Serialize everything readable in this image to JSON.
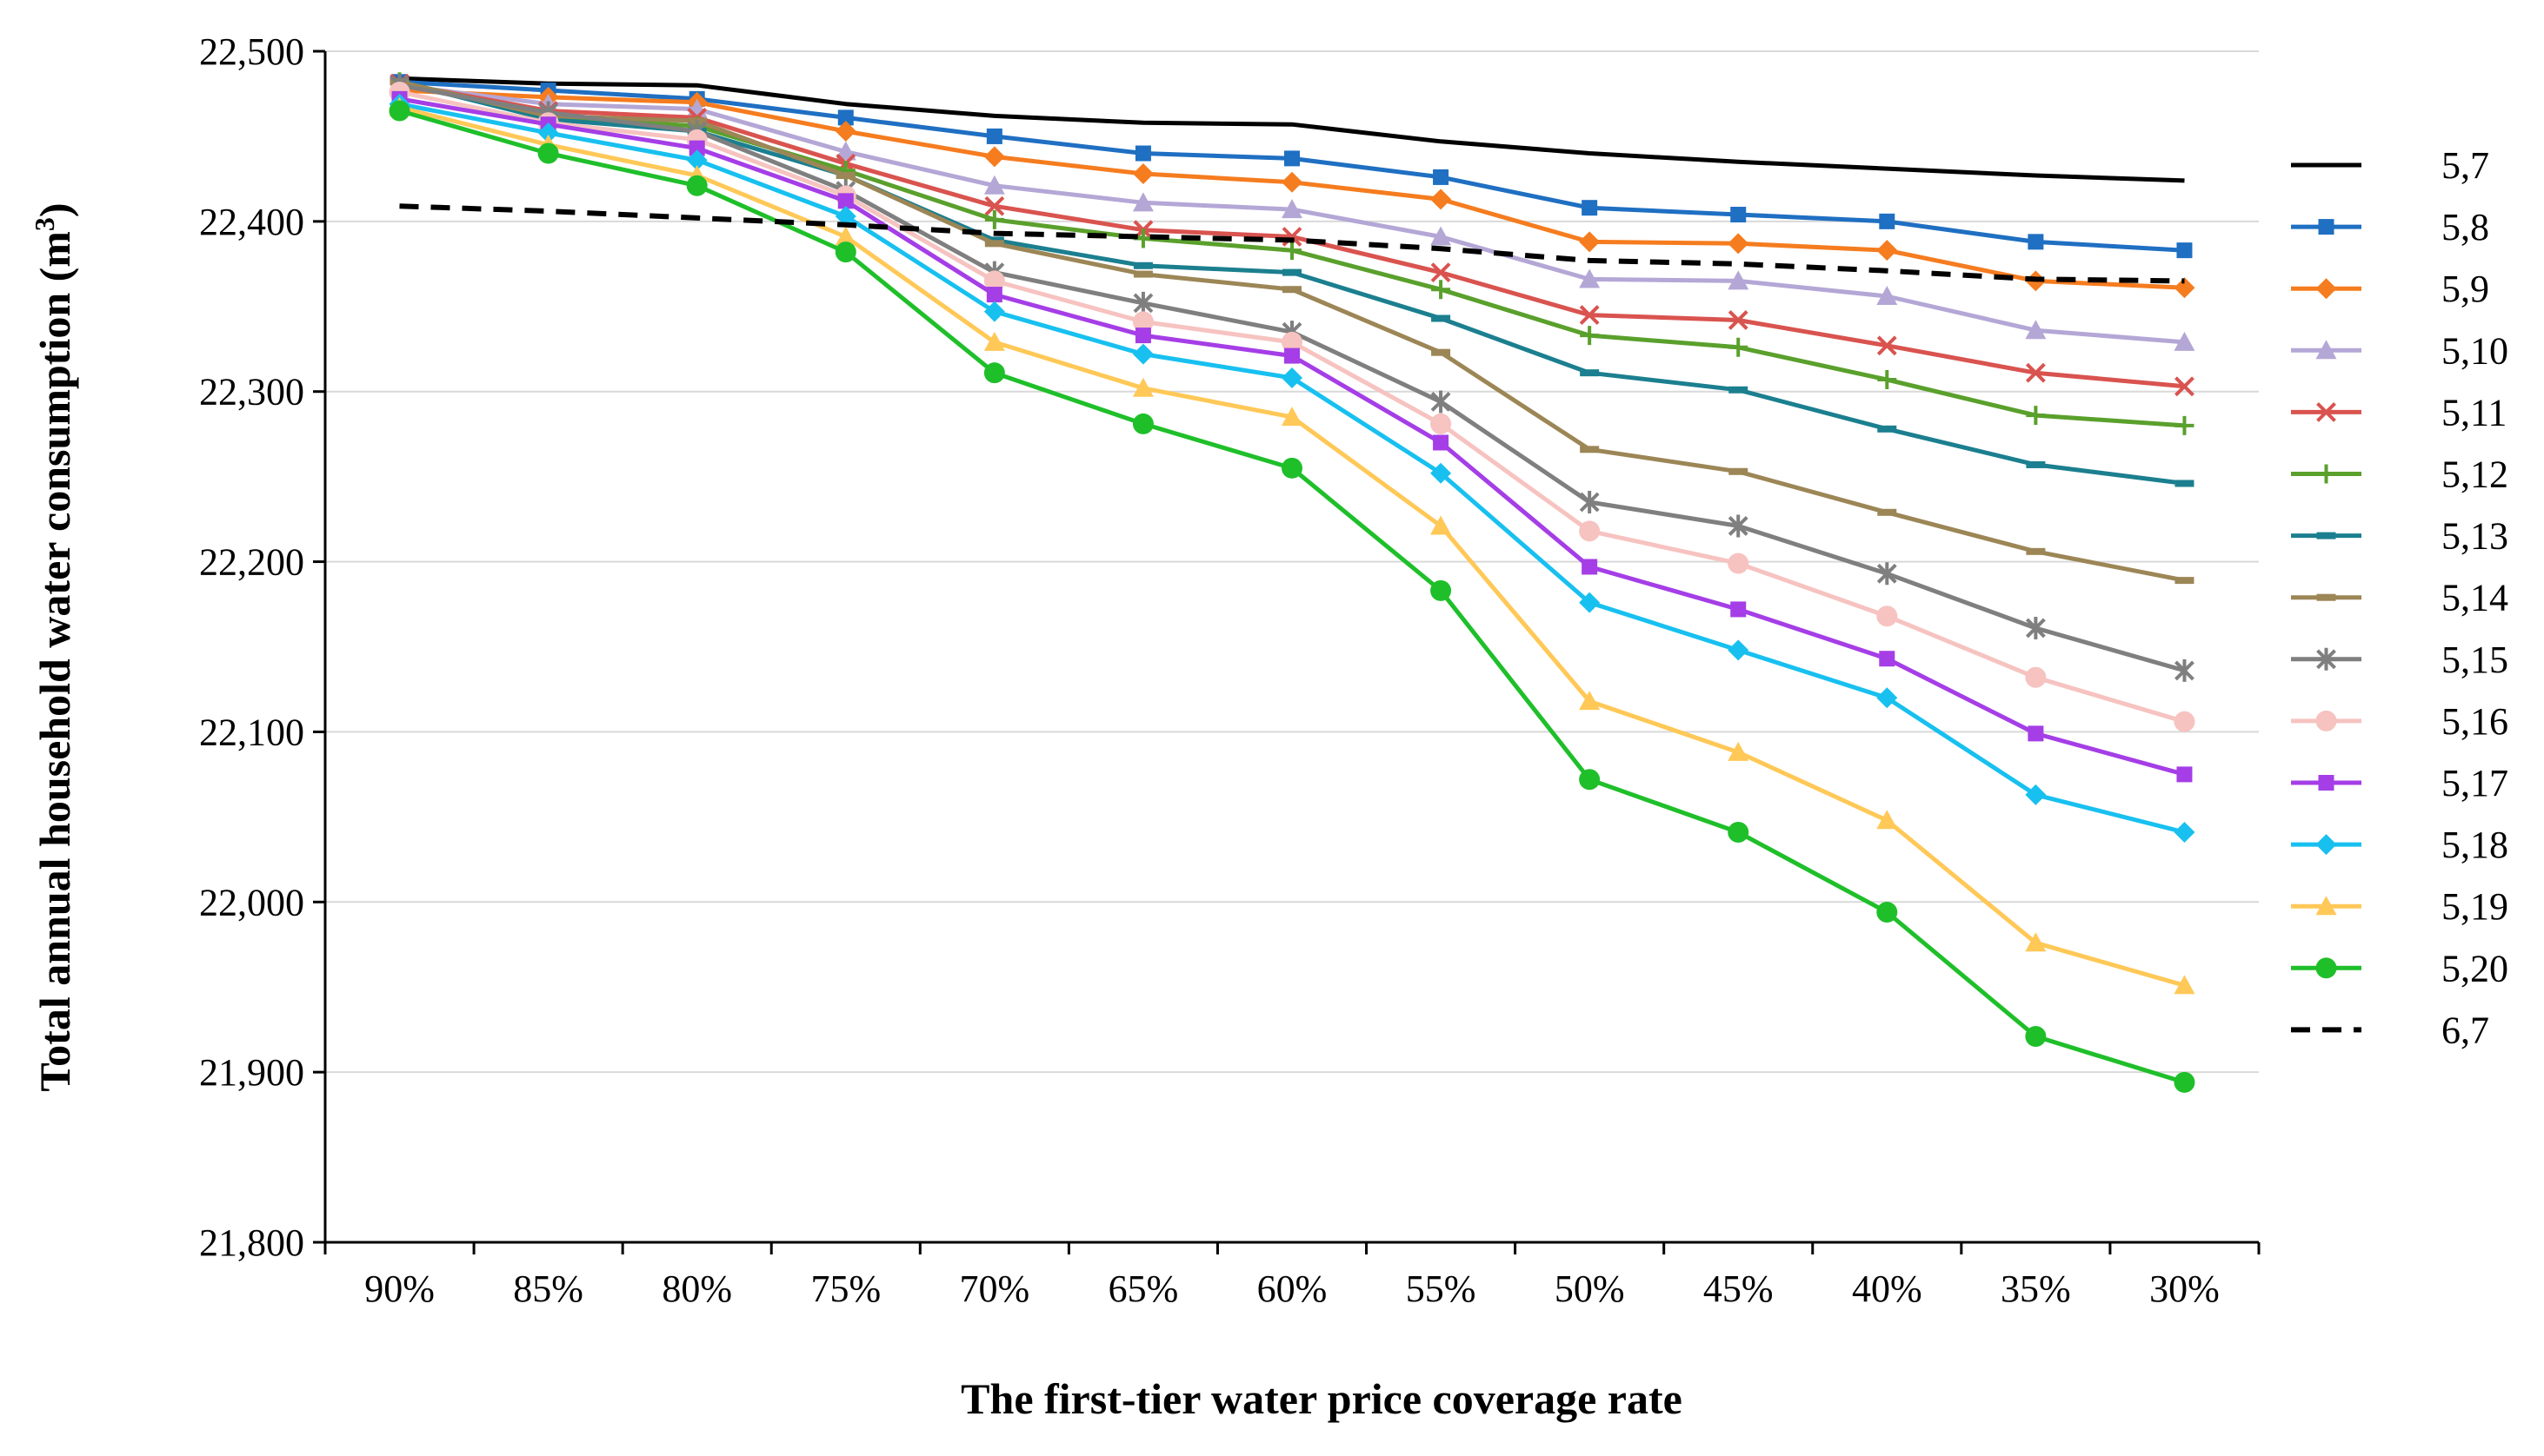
{
  "chart_data": {
    "type": "line",
    "title": "",
    "xlabel": "The first-tier water price coverage rate",
    "ylabel": "Total annual household water consumption (m",
    "ylabel_sup": "3",
    "ylabel_end": ")",
    "ylim": [
      21800,
      22500
    ],
    "yticks": [
      21800,
      21900,
      22000,
      22100,
      22200,
      22300,
      22400,
      22500
    ],
    "ytick_labels": [
      "21,800",
      "21,900",
      "22,000",
      "22,100",
      "22,200",
      "22,300",
      "22,400",
      "22,500"
    ],
    "categories": [
      "90%",
      "85%",
      "80%",
      "75%",
      "70%",
      "65%",
      "60%",
      "55%",
      "50%",
      "45%",
      "40%",
      "35%",
      "30%"
    ],
    "grid": "horizontal",
    "legend": "right",
    "series": [
      {
        "name": "5,7",
        "color": "#000000",
        "marker": "none",
        "dash": "solid",
        "values": [
          22484,
          22481,
          22480,
          22469,
          22462,
          22458,
          22457,
          22447,
          22440,
          22435,
          22431,
          22427,
          22424
        ]
      },
      {
        "name": "5,8",
        "color": "#1f6fc2",
        "marker": "square",
        "dash": "solid",
        "values": [
          22482,
          22477,
          22472,
          22461,
          22450,
          22440,
          22437,
          22426,
          22408,
          22404,
          22400,
          22388,
          22383
        ]
      },
      {
        "name": "5,9",
        "color": "#f57c1f",
        "marker": "diamond",
        "dash": "solid",
        "values": [
          22477,
          22473,
          22470,
          22453,
          22438,
          22428,
          22423,
          22413,
          22388,
          22387,
          22383,
          22365,
          22361
        ]
      },
      {
        "name": "5,10",
        "color": "#b4a7d6",
        "marker": "triangle",
        "dash": "solid",
        "values": [
          22480,
          22469,
          22466,
          22441,
          22421,
          22411,
          22407,
          22391,
          22366,
          22365,
          22356,
          22336,
          22329
        ]
      },
      {
        "name": "5,11",
        "color": "#d9534f",
        "marker": "x",
        "dash": "solid",
        "values": [
          22481,
          22465,
          22461,
          22434,
          22409,
          22395,
          22391,
          22370,
          22345,
          22342,
          22327,
          22311,
          22303
        ]
      },
      {
        "name": "5,12",
        "color": "#5aa02c",
        "marker": "plus",
        "dash": "solid",
        "values": [
          22482,
          22462,
          22456,
          22430,
          22401,
          22390,
          22383,
          22360,
          22333,
          22326,
          22307,
          22286,
          22280
        ]
      },
      {
        "name": "5,13",
        "color": "#1b7f8f",
        "marker": "dash",
        "dash": "solid",
        "values": [
          22482,
          22460,
          22453,
          22427,
          22389,
          22374,
          22370,
          22343,
          22311,
          22301,
          22278,
          22257,
          22246
        ]
      },
      {
        "name": "5,14",
        "color": "#9c8656",
        "marker": "dash",
        "dash": "solid",
        "values": [
          22482,
          22462,
          22459,
          22427,
          22387,
          22369,
          22360,
          22323,
          22266,
          22253,
          22229,
          22206,
          22189
        ]
      },
      {
        "name": "5,15",
        "color": "#7f7f7f",
        "marker": "star",
        "dash": "solid",
        "values": [
          22480,
          22464,
          22453,
          22418,
          22370,
          22352,
          22335,
          22294,
          22235,
          22221,
          22193,
          22161,
          22136
        ]
      },
      {
        "name": "5,16",
        "color": "#f6c3c0",
        "marker": "circle",
        "dash": "solid",
        "values": [
          22476,
          22458,
          22448,
          22415,
          22365,
          22341,
          22329,
          22281,
          22218,
          22199,
          22168,
          22132,
          22106
        ]
      },
      {
        "name": "5,17",
        "color": "#a53ee6",
        "marker": "square",
        "dash": "solid",
        "values": [
          22472,
          22457,
          22443,
          22412,
          22357,
          22333,
          22321,
          22270,
          22197,
          22172,
          22143,
          22099,
          22075
        ]
      },
      {
        "name": "5,18",
        "color": "#18c0f0",
        "marker": "diamond",
        "dash": "solid",
        "values": [
          22469,
          22452,
          22436,
          22403,
          22347,
          22322,
          22308,
          22252,
          22176,
          22148,
          22120,
          22063,
          22041
        ]
      },
      {
        "name": "5,19",
        "color": "#ffc857",
        "marker": "triangle",
        "dash": "solid",
        "values": [
          22467,
          22445,
          22427,
          22391,
          22329,
          22302,
          22285,
          22221,
          22118,
          22088,
          22048,
          21976,
          21951
        ]
      },
      {
        "name": "5,20",
        "color": "#1fbf2a",
        "marker": "circle",
        "dash": "solid",
        "values": [
          22465,
          22440,
          22421,
          22382,
          22311,
          22281,
          22255,
          22183,
          22072,
          22041,
          21994,
          21921,
          21894
        ]
      },
      {
        "name": "6,7",
        "color": "#000000",
        "marker": "none",
        "dash": "dashed",
        "values": [
          22409,
          22406,
          22402,
          22398,
          22393,
          22391,
          22389,
          22384,
          22377,
          22375,
          22371,
          22366,
          22365
        ]
      }
    ]
  }
}
